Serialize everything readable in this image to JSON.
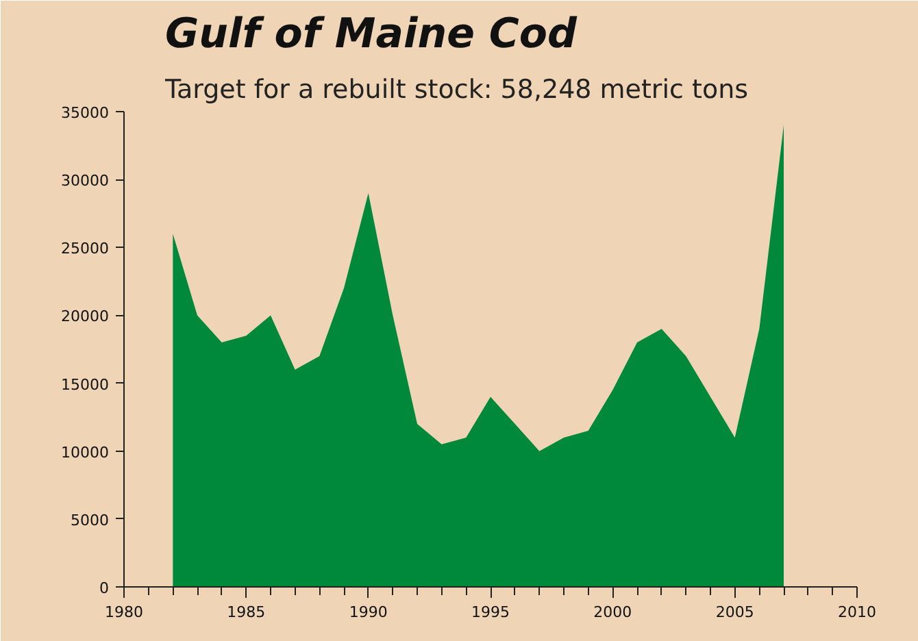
{
  "chart_data": {
    "type": "area",
    "title": "Gulf of Maine Cod",
    "subtitle": "Target for a rebuilt stock: 58,248 metric tons",
    "x": [
      1982,
      1983,
      1984,
      1985,
      1986,
      1987,
      1988,
      1989,
      1990,
      1991,
      1992,
      1993,
      1994,
      1995,
      1996,
      1997,
      1998,
      1999,
      2000,
      2001,
      2002,
      2003,
      2004,
      2005,
      2006,
      2007
    ],
    "series": [
      {
        "color": "#00893a",
        "values": [
          26000,
          20000,
          18000,
          18500,
          20000,
          16000,
          17000,
          22000,
          29000,
          20000,
          12000,
          10500,
          11000,
          14000,
          12000,
          10000,
          11000,
          11500,
          14500,
          18000,
          19000,
          17000,
          14000,
          11000,
          19000,
          34000
        ]
      }
    ],
    "xlim": [
      1980,
      2010
    ],
    "xticks": [
      1980,
      1985,
      1990,
      1995,
      2000,
      2005,
      2010
    ],
    "ylim": [
      0,
      35000
    ],
    "yticks": [
      0,
      5000,
      10000,
      15000,
      20000,
      25000,
      30000,
      35000
    ],
    "grid": false
  }
}
